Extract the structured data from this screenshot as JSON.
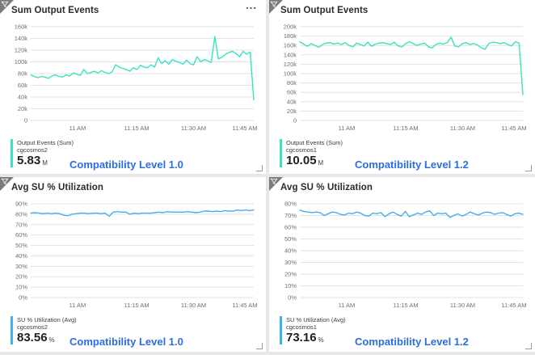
{
  "colors": {
    "teal_line": "#3ae2c0",
    "blue_line": "#44b0e8",
    "annotation_blue": "#2b6de4",
    "grid_line": "#e2e2e2",
    "axis_text": "#6f6f6f"
  },
  "menu_icon_glyph": "...",
  "panels": [
    {
      "title": "Sum Output Events",
      "legend": {
        "metric": "Output Events (Sum)",
        "resource": "cgcosmos2",
        "value": "5.83",
        "unit": "M"
      },
      "annotation": "Compatibility Level 1.0",
      "line_color": "#3ae2c0"
    },
    {
      "title": "Sum Output Events",
      "legend": {
        "metric": "Output Events (Sum)",
        "resource": "cgcosmos1",
        "value": "10.05",
        "unit": "M"
      },
      "annotation": "Compatibility Level 1.2",
      "line_color": "#3ae2c0"
    },
    {
      "title": "Avg SU % Utilization",
      "legend": {
        "metric": "SU % Utilization (Avg)",
        "resource": "cgcosmos2",
        "value": "83.56",
        "unit": "%"
      },
      "annotation": "Compatibility Level 1.0",
      "line_color": "#44b0e8"
    },
    {
      "title": "Avg SU % Utilization",
      "legend": {
        "metric": "SU % Utilization (Avg)",
        "resource": "cgcosmos1",
        "value": "73.16",
        "unit": "%"
      },
      "annotation": "Compatibility Level 1.2",
      "line_color": "#44b0e8"
    }
  ],
  "chart_data": [
    {
      "type": "line",
      "title": "Sum Output Events",
      "xlabel": "",
      "ylabel": "",
      "x_ticks": [
        "11 AM",
        "11:15 AM",
        "11:30 AM",
        "11:45 AM"
      ],
      "y_ticks": [
        "160k",
        "140k",
        "120k",
        "100k",
        "80k",
        "60k",
        "40k",
        "20k",
        "0"
      ],
      "ylim": [
        0,
        160000
      ],
      "grid": "horizontal",
      "legend_position": "bottom-left",
      "series": [
        {
          "name": "cgcosmos2",
          "values": [
            78000,
            75000,
            73000,
            75000,
            74000,
            72000,
            76000,
            78000,
            75000,
            74000,
            78000,
            76000,
            81000,
            79000,
            77000,
            87000,
            80000,
            82000,
            84000,
            81000,
            85000,
            82000,
            80000,
            83000,
            95000,
            91000,
            89000,
            87000,
            84000,
            90000,
            87000,
            94000,
            91000,
            90000,
            95000,
            91000,
            107000,
            97000,
            102000,
            96000,
            104000,
            101000,
            99000,
            96000,
            103000,
            97000,
            95000,
            109000,
            100000,
            104000,
            102000,
            99000,
            143000,
            105000,
            108000,
            113000,
            116000,
            118000,
            114000,
            109000,
            118000,
            113000,
            117000,
            35000
          ]
        }
      ]
    },
    {
      "type": "line",
      "title": "Sum Output Events",
      "xlabel": "",
      "ylabel": "",
      "x_ticks": [
        "11 AM",
        "11:15 AM",
        "11:30 AM",
        "11:45 AM"
      ],
      "y_ticks": [
        "200k",
        "180k",
        "160k",
        "140k",
        "120k",
        "100k",
        "80k",
        "60k",
        "40k",
        "20k",
        "0"
      ],
      "ylim": [
        0,
        200000
      ],
      "grid": "horizontal",
      "legend_position": "bottom-left",
      "series": [
        {
          "name": "cgcosmos1",
          "values": [
            168000,
            163000,
            158000,
            164000,
            160000,
            156000,
            162000,
            165000,
            166000,
            163000,
            165000,
            162000,
            166000,
            160000,
            157000,
            165000,
            162000,
            159000,
            167000,
            158000,
            163000,
            165000,
            166000,
            164000,
            162000,
            167000,
            159000,
            157000,
            164000,
            168000,
            164000,
            160000,
            163000,
            165000,
            157000,
            155000,
            162000,
            165000,
            163000,
            166000,
            178000,
            159000,
            157000,
            164000,
            166000,
            162000,
            164000,
            161000,
            155000,
            152000,
            164000,
            167000,
            166000,
            164000,
            166000,
            162000,
            159000,
            168000,
            165000,
            55000
          ]
        }
      ]
    },
    {
      "type": "line",
      "title": "Avg SU % Utilization",
      "xlabel": "",
      "ylabel": "",
      "x_ticks": [
        "11 AM",
        "11:15 AM",
        "11:30 AM",
        "11:45 AM"
      ],
      "y_ticks": [
        "90%",
        "80%",
        "70%",
        "60%",
        "50%",
        "40%",
        "30%",
        "20%",
        "10%",
        "0%"
      ],
      "ylim": [
        0,
        90
      ],
      "grid": "horizontal",
      "legend_position": "bottom-left",
      "series": [
        {
          "name": "cgcosmos2",
          "values": [
            81,
            81.5,
            81,
            80.5,
            81,
            80.5,
            81,
            80.5,
            79,
            78.5,
            80,
            80.5,
            81,
            81,
            80.5,
            81,
            81,
            80.5,
            81,
            78,
            82,
            82.5,
            82,
            82,
            80,
            81,
            80.5,
            81,
            81,
            81,
            81.5,
            82,
            81.5,
            82.5,
            82,
            82,
            82,
            82,
            82.5,
            82,
            81.5,
            82,
            83,
            83,
            82.5,
            83,
            82.5,
            83.5,
            83,
            83,
            84,
            83.5,
            84,
            83.5,
            84
          ]
        }
      ]
    },
    {
      "type": "line",
      "title": "Avg SU % Utilization",
      "xlabel": "",
      "ylabel": "",
      "x_ticks": [
        "11 AM",
        "11:15 AM",
        "11:30 AM",
        "11:45 AM"
      ],
      "y_ticks": [
        "80%",
        "70%",
        "60%",
        "50%",
        "40%",
        "30%",
        "20%",
        "10%",
        "0%"
      ],
      "ylim": [
        0,
        80
      ],
      "grid": "horizontal",
      "legend_position": "bottom-left",
      "series": [
        {
          "name": "cgcosmos1",
          "values": [
            74.5,
            73.5,
            73,
            72.5,
            73,
            72.5,
            70,
            71.5,
            73,
            72.5,
            71,
            70.5,
            72,
            71.5,
            73,
            72,
            70,
            69.5,
            72,
            71.5,
            72.5,
            69,
            71.5,
            73,
            71,
            69.5,
            73.5,
            69,
            70.5,
            72,
            71,
            73,
            74,
            70,
            72,
            71.5,
            72,
            68.5,
            70,
            71.5,
            69.5,
            71,
            73,
            71.5,
            70.5,
            72,
            73,
            72.5,
            71,
            72,
            72.5,
            71,
            69.5,
            71.5,
            72,
            71
          ]
        }
      ]
    }
  ]
}
